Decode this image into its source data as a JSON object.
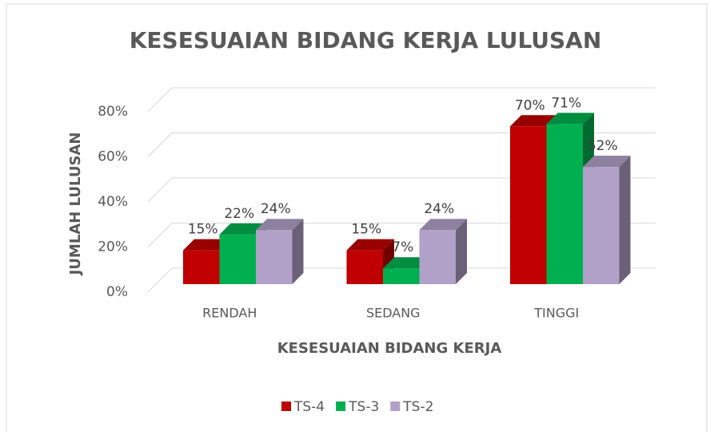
{
  "chart_data": {
    "type": "bar",
    "title": "KESESUAIAN BIDANG KERJA LULUSAN",
    "x_label": "KESESUAIAN BIDANG KERJA",
    "y_label": "JUMLAH LULUSAN",
    "categories": [
      "RENDAH",
      "SEDANG",
      "TINGGI"
    ],
    "series": [
      {
        "name": "TS-4",
        "color": "#c00000",
        "values": [
          15,
          15,
          70
        ],
        "value_labels": [
          "15%",
          "15%",
          "70%"
        ]
      },
      {
        "name": "TS-3",
        "color": "#00b050",
        "values": [
          22,
          7,
          71
        ],
        "value_labels": [
          "22%",
          "7%",
          "71%"
        ]
      },
      {
        "name": "TS-2",
        "color": "#b1a0c7",
        "values": [
          24,
          24,
          52
        ],
        "value_labels": [
          "24%",
          "24%",
          "52%"
        ]
      }
    ],
    "ylim": [
      0,
      80
    ],
    "yticks": [
      {
        "value": 0,
        "label": "0%"
      },
      {
        "value": 20,
        "label": "20%"
      },
      {
        "value": 40,
        "label": "40%"
      },
      {
        "value": 60,
        "label": "60%"
      },
      {
        "value": 80,
        "label": "80%"
      }
    ],
    "grid": true,
    "legend": "bottom"
  }
}
